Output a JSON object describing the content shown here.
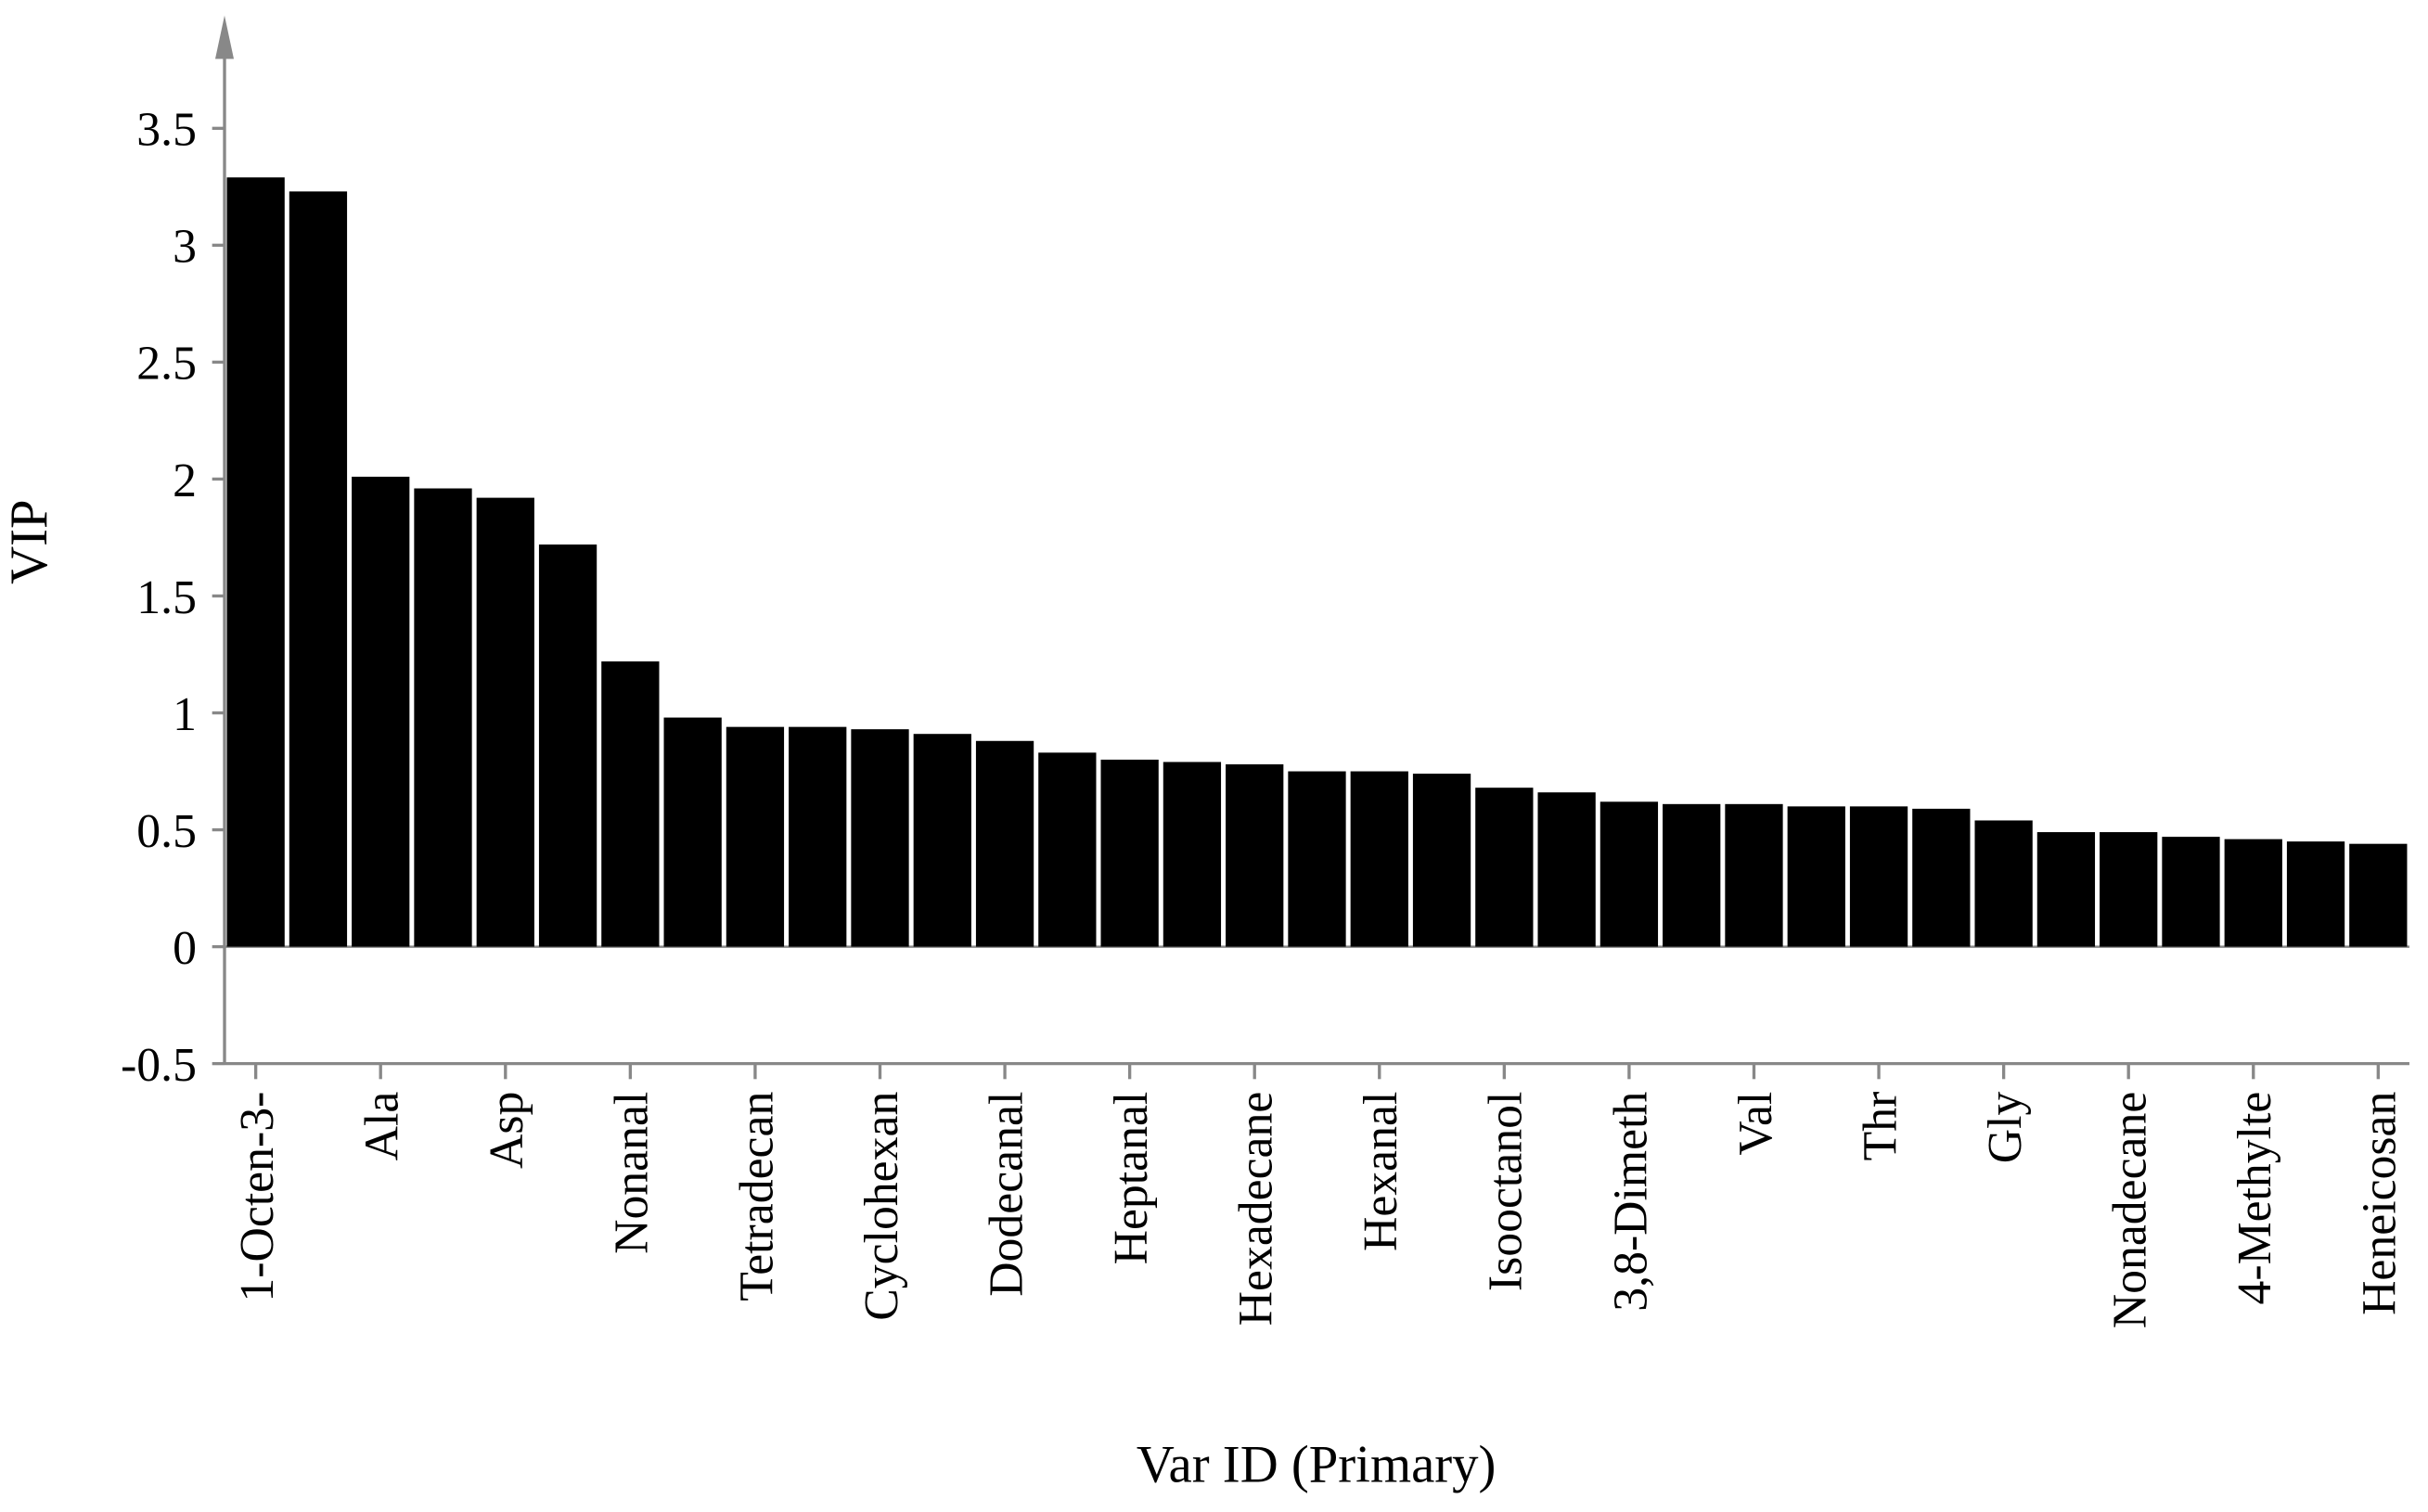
{
  "chart_data": {
    "type": "bar",
    "x_label": "Var ID (Primary)",
    "y_label": "VIP",
    "categories": [
      "1-Octen-3-",
      null,
      "Ala",
      null,
      "Asp",
      null,
      "Nonanal",
      null,
      "Tetradecan",
      null,
      "Cyclohexan",
      null,
      "Dodecanal",
      null,
      "Heptanal",
      null,
      "Hexadecane",
      null,
      "Hexanal",
      null,
      "Isooctanol",
      null,
      "3,8-Dimeth",
      null,
      "Val",
      null,
      "Thr",
      null,
      "Gly",
      null,
      "Nonadecane",
      null,
      "4-Methylte",
      null,
      "Heneicosan"
    ],
    "values": [
      3.29,
      3.23,
      2.01,
      1.96,
      1.92,
      1.72,
      1.22,
      0.98,
      0.94,
      0.94,
      0.93,
      0.91,
      0.88,
      0.83,
      0.8,
      0.79,
      0.78,
      0.75,
      0.75,
      0.74,
      0.68,
      0.66,
      0.62,
      0.61,
      0.61,
      0.6,
      0.6,
      0.59,
      0.54,
      0.49,
      0.49,
      0.47,
      0.46,
      0.45,
      0.44
    ],
    "color": "#000000",
    "ylim": [
      -0.5,
      3.85
    ],
    "yticks": [
      -0.5,
      0,
      0.5,
      1,
      1.5,
      2,
      2.5,
      3,
      3.5
    ]
  }
}
